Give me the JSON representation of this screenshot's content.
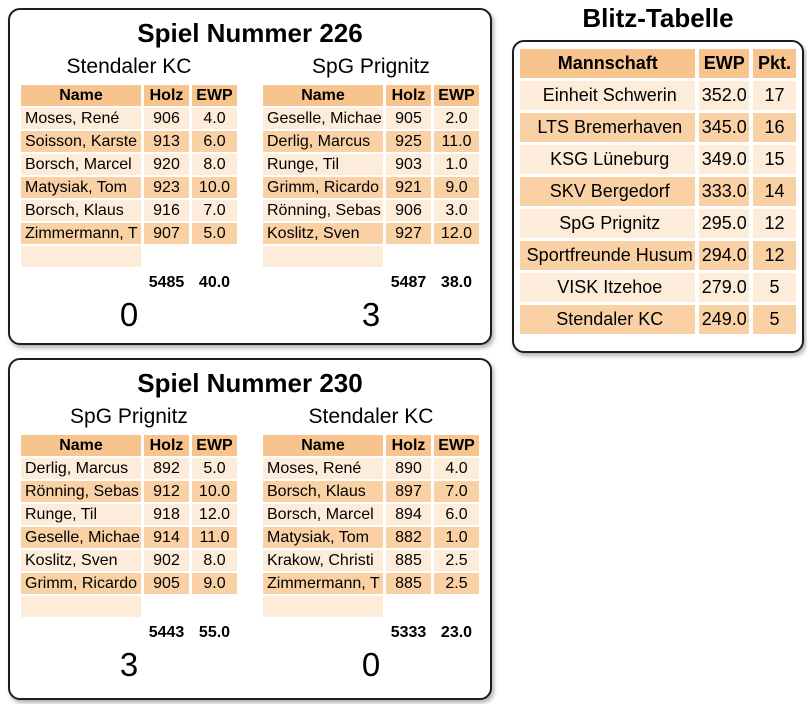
{
  "colors": {
    "header_bg": "#f7c48e",
    "row_dark": "#fad1a4",
    "row_light": "#fdecd9",
    "panel_border": "#1d1d1d",
    "page_bg": "#ffffff",
    "text": "#000000"
  },
  "player_table_columns": [
    "Name",
    "Holz",
    "EWP"
  ],
  "games": [
    {
      "title": "Spiel Nummer 226",
      "teams": [
        {
          "name": "Stendaler KC",
          "players": [
            {
              "name": "Moses, René",
              "holz": "906",
              "ewp": "4.0"
            },
            {
              "name": "Soisson, Karste",
              "holz": "913",
              "ewp": "6.0"
            },
            {
              "name": "Borsch, Marcel",
              "holz": "920",
              "ewp": "8.0"
            },
            {
              "name": "Matysiak, Tom",
              "holz": "923",
              "ewp": "10.0"
            },
            {
              "name": "Borsch, Klaus",
              "holz": "916",
              "ewp": "7.0"
            },
            {
              "name": "Zimmermann, T",
              "holz": "907",
              "ewp": "5.0"
            }
          ],
          "total_holz": "5485",
          "total_ewp": "40.0",
          "score": "0"
        },
        {
          "name": "SpG Prignitz",
          "players": [
            {
              "name": "Geselle, Michae",
              "holz": "905",
              "ewp": "2.0"
            },
            {
              "name": "Derlig, Marcus",
              "holz": "925",
              "ewp": "11.0"
            },
            {
              "name": "Runge, Til",
              "holz": "903",
              "ewp": "1.0"
            },
            {
              "name": "Grimm, Ricardo",
              "holz": "921",
              "ewp": "9.0"
            },
            {
              "name": "Rönning, Sebas",
              "holz": "906",
              "ewp": "3.0"
            },
            {
              "name": "Koslitz, Sven",
              "holz": "927",
              "ewp": "12.0"
            }
          ],
          "total_holz": "5487",
          "total_ewp": "38.0",
          "score": "3"
        }
      ]
    },
    {
      "title": "Spiel Nummer 230",
      "teams": [
        {
          "name": "SpG Prignitz",
          "players": [
            {
              "name": "Derlig, Marcus",
              "holz": "892",
              "ewp": "5.0"
            },
            {
              "name": "Rönning, Sebas",
              "holz": "912",
              "ewp": "10.0"
            },
            {
              "name": "Runge, Til",
              "holz": "918",
              "ewp": "12.0"
            },
            {
              "name": "Geselle, Michae",
              "holz": "914",
              "ewp": "11.0"
            },
            {
              "name": "Koslitz, Sven",
              "holz": "902",
              "ewp": "8.0"
            },
            {
              "name": "Grimm, Ricardo",
              "holz": "905",
              "ewp": "9.0"
            }
          ],
          "total_holz": "5443",
          "total_ewp": "55.0",
          "score": "3"
        },
        {
          "name": "Stendaler KC",
          "players": [
            {
              "name": "Moses, René",
              "holz": "890",
              "ewp": "4.0"
            },
            {
              "name": "Borsch, Klaus",
              "holz": "897",
              "ewp": "7.0"
            },
            {
              "name": "Borsch, Marcel",
              "holz": "894",
              "ewp": "6.0"
            },
            {
              "name": "Matysiak, Tom",
              "holz": "882",
              "ewp": "1.0"
            },
            {
              "name": "Krakow, Christi",
              "holz": "885",
              "ewp": "2.5"
            },
            {
              "name": "Zimmermann, T",
              "holz": "885",
              "ewp": "2.5"
            }
          ],
          "total_holz": "5333",
          "total_ewp": "23.0",
          "score": "0"
        }
      ]
    }
  ],
  "standings": {
    "title": "Blitz-Tabelle",
    "columns": [
      "Mannschaft",
      "EWP",
      "Pkt."
    ],
    "rows": [
      {
        "team": "Einheit Schwerin",
        "ewp": "352.0",
        "pkt": "17"
      },
      {
        "team": "LTS Bremerhaven",
        "ewp": "345.0",
        "pkt": "16"
      },
      {
        "team": "KSG Lüneburg",
        "ewp": "349.0",
        "pkt": "15"
      },
      {
        "team": "SKV Bergedorf",
        "ewp": "333.0",
        "pkt": "14"
      },
      {
        "team": "SpG Prignitz",
        "ewp": "295.0",
        "pkt": "12"
      },
      {
        "team": "Sportfreunde Husum",
        "ewp": "294.0",
        "pkt": "12"
      },
      {
        "team": "VISK Itzehoe",
        "ewp": "279.0",
        "pkt": "5"
      },
      {
        "team": "Stendaler KC",
        "ewp": "249.0",
        "pkt": "5"
      }
    ]
  }
}
